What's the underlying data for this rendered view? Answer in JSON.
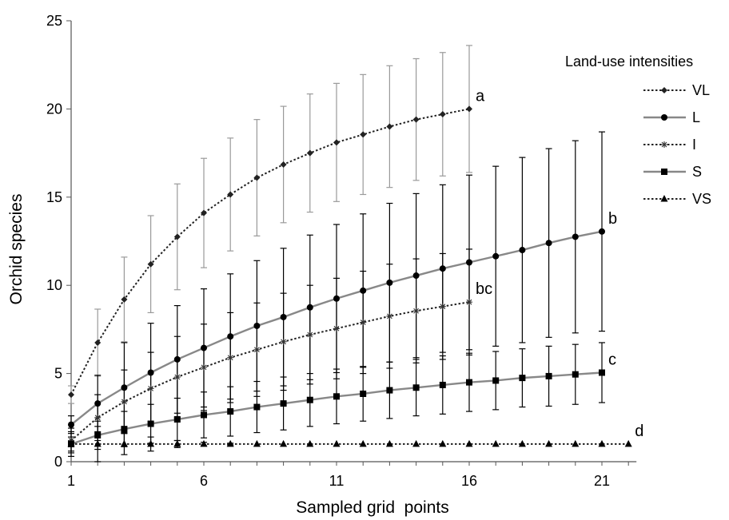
{
  "chart_data": {
    "type": "line",
    "title": "",
    "xlabel": "Sampled grid  points",
    "ylabel": "Orchid species",
    "xlim": [
      1,
      22
    ],
    "ylim": [
      0,
      25
    ],
    "xticks": [
      1,
      6,
      11,
      16,
      21
    ],
    "yticks": [
      0,
      5,
      10,
      15,
      20,
      25
    ],
    "grid": false,
    "legend": {
      "title": "Land-use intensities",
      "position": "right"
    },
    "series": [
      {
        "name": "VL",
        "line": "dotted",
        "marker": "diamond",
        "color": "#222222",
        "errorbar_color": "#9a9a9a",
        "end_label": "a",
        "x": [
          1,
          2,
          3,
          4,
          5,
          6,
          7,
          8,
          9,
          10,
          11,
          12,
          13,
          14,
          15,
          16
        ],
        "y": [
          3.8,
          6.75,
          9.2,
          11.2,
          12.75,
          14.1,
          15.15,
          16.1,
          16.85,
          17.5,
          18.1,
          18.55,
          19.0,
          19.4,
          19.7,
          20.0
        ],
        "err": [
          0.5,
          1.9,
          2.4,
          2.75,
          3.0,
          3.1,
          3.2,
          3.3,
          3.3,
          3.35,
          3.35,
          3.4,
          3.45,
          3.45,
          3.5,
          3.6
        ]
      },
      {
        "name": "L",
        "line": "solid",
        "marker": "circle",
        "color": "#888888",
        "errorbar_color": "#000000",
        "end_label": "b",
        "x": [
          1,
          2,
          3,
          4,
          5,
          6,
          7,
          8,
          9,
          10,
          11,
          12,
          13,
          14,
          15,
          16,
          17,
          18,
          19,
          20,
          21
        ],
        "y": [
          2.1,
          3.3,
          4.2,
          5.05,
          5.8,
          6.45,
          7.1,
          7.7,
          8.2,
          8.75,
          9.25,
          9.7,
          10.15,
          10.55,
          10.95,
          11.3,
          11.65,
          12.0,
          12.4,
          12.75,
          13.05
        ],
        "err": [
          0.5,
          1.6,
          2.55,
          2.8,
          3.05,
          3.35,
          3.55,
          3.7,
          3.9,
          4.1,
          4.2,
          4.35,
          4.5,
          4.65,
          4.75,
          4.95,
          5.1,
          5.25,
          5.35,
          5.45,
          5.65
        ]
      },
      {
        "name": "I",
        "line": "dotted",
        "marker": "star",
        "color": "#222222",
        "errorbar_color": "#000000",
        "end_label": "bc",
        "x": [
          1,
          2,
          3,
          4,
          5,
          6,
          7,
          8,
          9,
          10,
          11,
          12,
          13,
          14,
          15,
          16
        ],
        "y": [
          1.2,
          2.5,
          3.4,
          4.15,
          4.8,
          5.35,
          5.9,
          6.35,
          6.8,
          7.2,
          7.55,
          7.9,
          8.25,
          8.55,
          8.8,
          9.05
        ],
        "err": [
          0.7,
          1.3,
          1.8,
          2.05,
          2.3,
          2.45,
          2.55,
          2.65,
          2.75,
          2.8,
          2.85,
          2.9,
          2.95,
          2.95,
          3.0,
          3.0
        ]
      },
      {
        "name": "S",
        "line": "solid",
        "marker": "square",
        "color": "#888888",
        "errorbar_color": "#000000",
        "end_label": "c",
        "x": [
          1,
          2,
          3,
          4,
          5,
          6,
          7,
          8,
          9,
          10,
          11,
          12,
          13,
          14,
          15,
          16,
          17,
          18,
          19,
          20,
          21
        ],
        "y": [
          1.0,
          1.5,
          1.85,
          2.15,
          2.4,
          2.65,
          2.85,
          3.1,
          3.3,
          3.5,
          3.7,
          3.85,
          4.05,
          4.2,
          4.35,
          4.5,
          4.6,
          4.75,
          4.85,
          4.95,
          5.05
        ],
        "err": [
          0.4,
          0.8,
          1.0,
          1.1,
          1.2,
          1.3,
          1.4,
          1.45,
          1.5,
          1.5,
          1.55,
          1.55,
          1.6,
          1.6,
          1.65,
          1.65,
          1.65,
          1.65,
          1.7,
          1.7,
          1.7
        ]
      },
      {
        "name": "VS",
        "line": "dotted",
        "marker": "triangle",
        "color": "#222222",
        "errorbar_color": "#000000",
        "end_label": "d",
        "x": [
          1,
          2,
          3,
          4,
          5,
          6,
          7,
          8,
          9,
          10,
          11,
          12,
          13,
          14,
          15,
          16,
          17,
          18,
          19,
          20,
          21,
          22
        ],
        "y": [
          1,
          1,
          1,
          1,
          1,
          1,
          1,
          1,
          1,
          1,
          1,
          1,
          1,
          1,
          1,
          1,
          1,
          1,
          1,
          1,
          1,
          1
        ],
        "err": [
          0.7,
          1.0,
          0.6,
          0.4,
          0.2,
          0.1,
          0.05,
          0,
          0,
          0,
          0,
          0,
          0,
          0,
          0,
          0,
          0,
          0,
          0,
          0,
          0,
          0
        ]
      }
    ]
  }
}
